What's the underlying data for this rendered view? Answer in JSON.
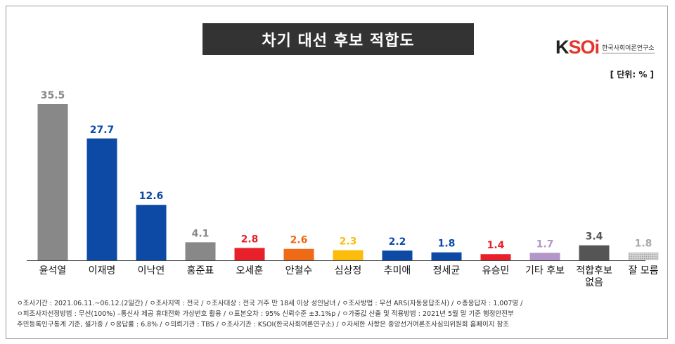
{
  "title": "차기 대선 후보 적합도",
  "logo": {
    "main_k": "K",
    "main_rest": "SOi",
    "sub": "한국사회여론연구소"
  },
  "unit_label": "[ 단위: % ]",
  "colors": {
    "grey": "#888888",
    "blue": "#0c4aa6",
    "red": "#e8202a",
    "orange": "#ee6a17",
    "yellow": "#fbbc0b",
    "lilac": "#b497c9",
    "dark": "#555555",
    "light": "#c8c8c8"
  },
  "chart_data": {
    "type": "bar",
    "title": "차기 대선 후보 적합도",
    "xlabel": "",
    "ylabel": "",
    "unit": "%",
    "categories": [
      "윤석열",
      "이재명",
      "이낙연",
      "홍준표",
      "오세훈",
      "안철수",
      "심상정",
      "추미애",
      "정세균",
      "유승민",
      "기타 후보",
      "적합후보 없음",
      "잘 모름"
    ],
    "values": [
      35.5,
      27.7,
      12.6,
      4.1,
      2.8,
      2.6,
      2.3,
      2.2,
      1.8,
      1.4,
      1.7,
      3.4,
      1.8
    ],
    "value_labels": [
      "35.5",
      "27.7",
      "12.6",
      "4.1",
      "2.8",
      "2.6",
      "2.3",
      "2.2",
      "1.8",
      "1.4",
      "1.7",
      "3.4",
      "1.8"
    ],
    "category_lines": [
      [
        "윤석열"
      ],
      [
        "이재명"
      ],
      [
        "이낙연"
      ],
      [
        "홍준표"
      ],
      [
        "오세훈"
      ],
      [
        "안철수"
      ],
      [
        "심상정"
      ],
      [
        "추미애"
      ],
      [
        "정세균"
      ],
      [
        "유승민"
      ],
      [
        "기타 후보"
      ],
      [
        "적합후보",
        "없음"
      ],
      [
        "잘 모름"
      ]
    ],
    "bar_colors": [
      "#888888",
      "#0c4aa6",
      "#0c4aa6",
      "#888888",
      "#e8202a",
      "#ee6a17",
      "#fbbc0b",
      "#0c4aa6",
      "#0c4aa6",
      "#e8202a",
      "#b497c9",
      "#555555",
      "#c8c8c8"
    ],
    "label_colors": [
      "#888888",
      "#0c4aa6",
      "#0c4aa6",
      "#888888",
      "#e8202a",
      "#ee6a17",
      "#fbbc0b",
      "#0c4aa6",
      "#0c4aa6",
      "#e8202a",
      "#b497c9",
      "#555555",
      "#a8a8a8"
    ],
    "ylim": [
      0,
      35.5
    ],
    "grid": false,
    "legend": "none"
  },
  "footnotes": [
    "ㅇ조사기간 : 2021.06.11.~06.12.(2일간)  / ㅇ조사지역 : 전국 / ㅇ조사대상 : 전국 거주 만 18세 이상 성인남녀 / ㅇ조사방법 : 무선 ARS(자동응답조사) / ㅇ총응답자 : 1,007명 /",
    "ㅇ피조사자선정방법 : 무선(100%) –통신사 제공 휴대전화 가상번호 활용 / ㅇ표본오차 : 95% 신뢰수준 ±3.1%p / ㅇ가중값 산출 및 적용방법 : 2021년 5월 말 기준 행정안전부",
    "주민등록인구통계 기준, 셀가중 / ㅇ응답률 : 6.8% / ㅇ의뢰기관 : TBS / ㅇ조사기관 : KSOI(한국사회여론연구소) / ㅇ자세한 사항은 중앙선거여론조사심의위원회 홈페이지 참조"
  ]
}
